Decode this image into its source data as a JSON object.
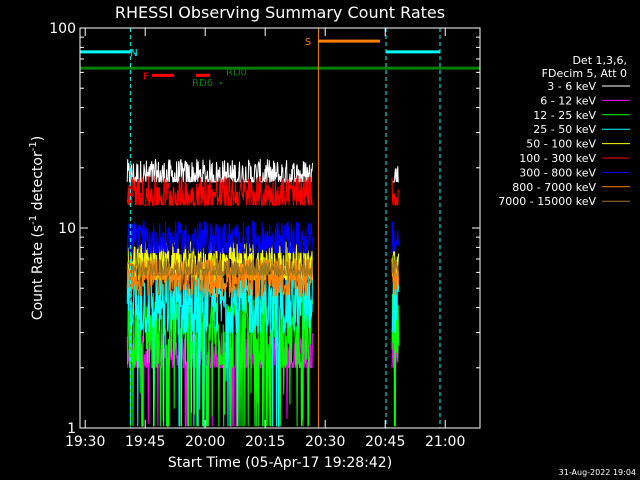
{
  "chart_data": {
    "type": "line",
    "title": "RHESSI Observing Summary Count Rates",
    "xlabel": "Start Time (05-Apr-17 19:28:42)",
    "ylabel_main": "Count Rate (s",
    "ylabel_sup": "-1",
    "ylabel_mid": " detector",
    "ylabel_sup2": "-1",
    "ylabel_end": ")",
    "x_unit": "minutes since 19:28:42",
    "xlim": [
      0,
      100
    ],
    "ylim": [
      1,
      100
    ],
    "y_scale": "log",
    "x_ticks": [
      {
        "label": "19:30",
        "value": 1.3
      },
      {
        "label": "19:45",
        "value": 16.3
      },
      {
        "label": "20:00",
        "value": 31.3
      },
      {
        "label": "20:15",
        "value": 46.3
      },
      {
        "label": "20:30",
        "value": 61.3
      },
      {
        "label": "20:45",
        "value": 76.3
      },
      {
        "label": "21:00",
        "value": 91.3
      }
    ],
    "y_ticks": [
      {
        "label": "1",
        "value": 1
      },
      {
        "label": "10",
        "value": 10
      },
      {
        "label": "100",
        "value": 100
      }
    ],
    "legend_header": [
      "Det 1,3,6,",
      "FDecim 5, Att 0"
    ],
    "legend_position": "right",
    "series": [
      {
        "name": "3 - 6 keV",
        "color": "#ffffff",
        "level": 18.0,
        "jitter": 0.09,
        "floor": 17.0,
        "segments": [
          [
            11.8,
            58.2
          ],
          [
            78.0,
            79.8
          ]
        ]
      },
      {
        "name": "6 - 12 keV",
        "color": "#ff00ff",
        "level": 2.3,
        "jitter": 0.12,
        "floor": 2.0,
        "dips": 0.05,
        "segments": [
          [
            11.8,
            58.2
          ],
          [
            78.0,
            79.8
          ]
        ]
      },
      {
        "name": "12 - 25 keV",
        "color": "#00ff00",
        "level": 3.0,
        "jitter": 0.2,
        "floor": 2.0,
        "dips": 0.12,
        "segments": [
          [
            11.8,
            58.2
          ],
          [
            78.0,
            79.8
          ]
        ]
      },
      {
        "name": "25 - 50 keV",
        "color": "#00ffff",
        "level": 4.2,
        "jitter": 0.18,
        "floor": 3.0,
        "dips": 0.04,
        "segments": [
          [
            11.8,
            58.2
          ],
          [
            78.0,
            79.8
          ]
        ]
      },
      {
        "name": "50 - 100 keV",
        "color": "#ffff00",
        "level": 6.5,
        "jitter": 0.12,
        "floor": 5.5,
        "segments": [
          [
            11.8,
            58.2
          ],
          [
            78.0,
            79.8
          ]
        ]
      },
      {
        "name": "100 - 300 keV",
        "color": "#ff0000",
        "level": 14.5,
        "jitter": 0.1,
        "floor": 13.0,
        "segments": [
          [
            11.8,
            58.2
          ],
          [
            78.0,
            79.8
          ]
        ]
      },
      {
        "name": "300 - 800 keV",
        "color": "#0000ff",
        "level": 8.6,
        "jitter": 0.1,
        "floor": 7.5,
        "segments": [
          [
            11.8,
            58.2
          ],
          [
            78.0,
            79.8
          ]
        ]
      },
      {
        "name": "800 - 7000 keV",
        "color": "#ff8000",
        "level": 5.6,
        "jitter": 0.1,
        "floor": 4.5,
        "segments": [
          [
            11.8,
            58.2
          ],
          [
            78.0,
            79.8
          ]
        ]
      },
      {
        "name": "7000 - 15000 keV",
        "color": "#a07820",
        "level": 6.2,
        "jitter": 0.06,
        "floor": 5.8,
        "segments": [
          [
            11.8,
            58.2
          ],
          [
            78.0,
            79.8
          ]
        ]
      }
    ],
    "flags": [
      {
        "label": "N",
        "color": "#00ffff",
        "y": 76,
        "segments": [
          [
            0,
            12.6
          ],
          [
            76.5,
            90.0
          ]
        ],
        "label_x": 13.5
      },
      {
        "label": "S",
        "color": "#ff8000",
        "y": 86,
        "segments": [
          [
            59.6,
            75.0
          ]
        ],
        "label_x": 57.0
      },
      {
        "label": "F",
        "color": "#ff0000",
        "y": 58,
        "segments": [
          [
            18.0,
            23.5
          ],
          [
            29.0,
            32.5
          ]
        ],
        "label_x": 16.5
      },
      {
        "label": "",
        "color": "#008000",
        "y": 63,
        "segments": [
          [
            0,
            100
          ]
        ],
        "label_x": 0
      }
    ],
    "annotations": [
      {
        "text": "RD0",
        "color": "#008000",
        "x": 36.5,
        "y": 60
      },
      {
        "text": "RD6",
        "color": "#008000",
        "x": 28.0,
        "y": 53
      }
    ],
    "vlines": [
      {
        "x": 0.0,
        "color": "#00ffff",
        "style": "solid"
      },
      {
        "x": 12.6,
        "color": "#00ffff",
        "style": "dashed"
      },
      {
        "x": 59.6,
        "color": "#ff8000",
        "style": "solid"
      },
      {
        "x": 76.5,
        "color": "#00ffff",
        "style": "dashed"
      },
      {
        "x": 90.0,
        "color": "#00ffff",
        "style": "dashed"
      }
    ],
    "footer_date": "31-Aug-2022 19:04"
  }
}
